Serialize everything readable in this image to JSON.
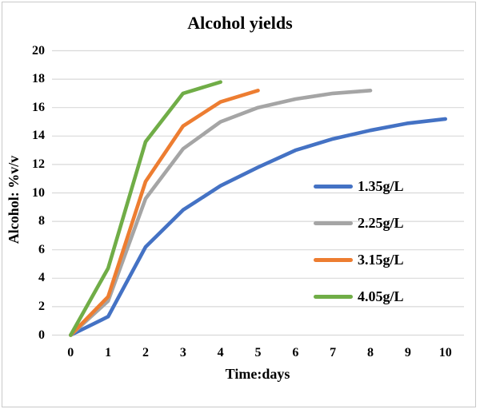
{
  "chart_data": {
    "type": "line",
    "title": "Alcohol yields",
    "xlabel": "Time:days",
    "ylabel": "Alcohol: %v/v",
    "xlim": [
      0,
      10
    ],
    "ylim": [
      0,
      20
    ],
    "x_ticks": [
      0,
      1,
      2,
      3,
      4,
      5,
      6,
      7,
      8,
      9,
      10
    ],
    "y_ticks": [
      0,
      2,
      4,
      6,
      8,
      10,
      12,
      14,
      16,
      18,
      20
    ],
    "grid": "horizontal",
    "gridline_color": "#d9d9d9",
    "legend_position": "inside-right",
    "series": [
      {
        "name": "1.35g/L",
        "color": "#4472C4",
        "x": [
          0,
          1,
          2,
          3,
          4,
          5,
          6,
          7,
          8,
          9,
          10
        ],
        "y": [
          0,
          1.3,
          6.2,
          8.8,
          10.5,
          11.8,
          13.0,
          13.8,
          14.4,
          14.9,
          15.2
        ]
      },
      {
        "name": "2.25g/L",
        "color": "#A5A5A5",
        "x": [
          0,
          1,
          2,
          3,
          4,
          5,
          6,
          7,
          8
        ],
        "y": [
          0,
          2.4,
          9.6,
          13.1,
          15.0,
          16.0,
          16.6,
          17.0,
          17.2
        ]
      },
      {
        "name": "3.15g/L",
        "color": "#ED7D31",
        "x": [
          0,
          1,
          2,
          3,
          4,
          5
        ],
        "y": [
          0,
          2.7,
          10.8,
          14.7,
          16.4,
          17.2
        ]
      },
      {
        "name": "4.05g/L",
        "color": "#70AD47",
        "x": [
          0,
          1,
          2,
          3,
          4
        ],
        "y": [
          0,
          4.7,
          13.6,
          17.0,
          17.8
        ]
      }
    ]
  }
}
